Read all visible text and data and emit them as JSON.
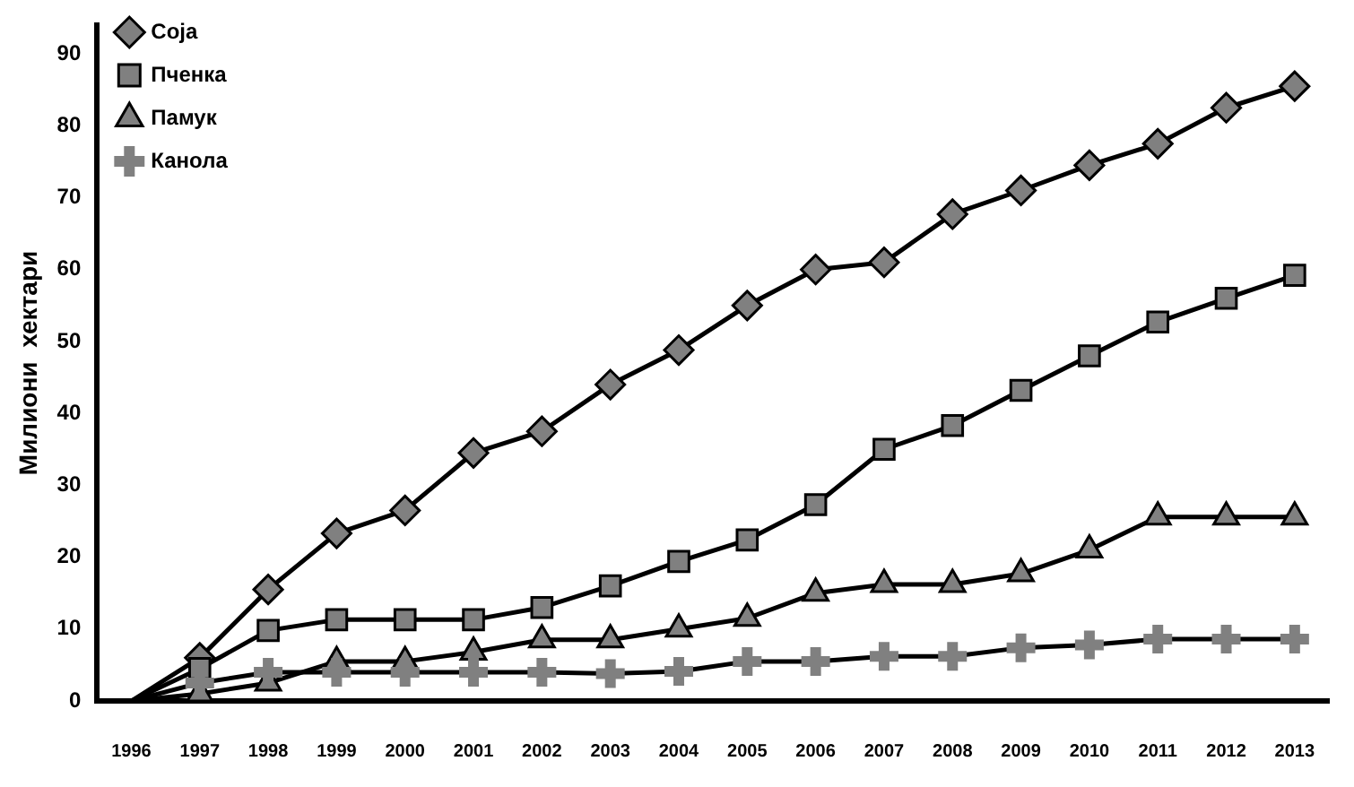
{
  "chart_data": {
    "type": "line",
    "ylabel": "Милиони  хектари",
    "categories": [
      "1996",
      "1997",
      "1998",
      "1999",
      "2000",
      "2001",
      "2002",
      "2003",
      "2004",
      "2005",
      "2006",
      "2007",
      "2008",
      "2009",
      "2010",
      "2011",
      "2012",
      "2013"
    ],
    "series": [
      {
        "name": "Соја",
        "color": "#808080",
        "marker": "diamond",
        "values": [
          0,
          6,
          15.5,
          23.3,
          26.5,
          34.5,
          37.5,
          44,
          48.8,
          55,
          60,
          61,
          67.7,
          71,
          74.5,
          77.5,
          82.5,
          85.5
        ]
      },
      {
        "name": "Пченка",
        "color": "#808080",
        "marker": "square",
        "values": [
          0,
          4.5,
          9.8,
          11.3,
          11.3,
          11.3,
          13,
          16,
          19.4,
          22.4,
          27.3,
          35,
          38.3,
          43.2,
          48,
          52.7,
          56,
          59.2
        ]
      },
      {
        "name": "Памук",
        "color": "#808080",
        "marker": "triangle",
        "values": [
          0,
          1,
          2.5,
          5.5,
          5.5,
          6.8,
          8.5,
          8.5,
          10,
          11.5,
          15,
          16.2,
          16.2,
          17.7,
          21,
          25.6,
          25.6,
          25.6
        ]
      },
      {
        "name": "Канола",
        "color": "#808080",
        "marker": "cross",
        "values": [
          0,
          2.5,
          4,
          4,
          4,
          4,
          4,
          3.8,
          4.1,
          5.5,
          5.5,
          6.2,
          6.2,
          7.4,
          7.8,
          8.6,
          8.6,
          8.6
        ]
      }
    ],
    "ylim": [
      0,
      94
    ],
    "yticks": [
      0,
      10,
      20,
      30,
      40,
      50,
      60,
      70,
      80,
      90
    ],
    "grid": false,
    "legend": "top left"
  }
}
